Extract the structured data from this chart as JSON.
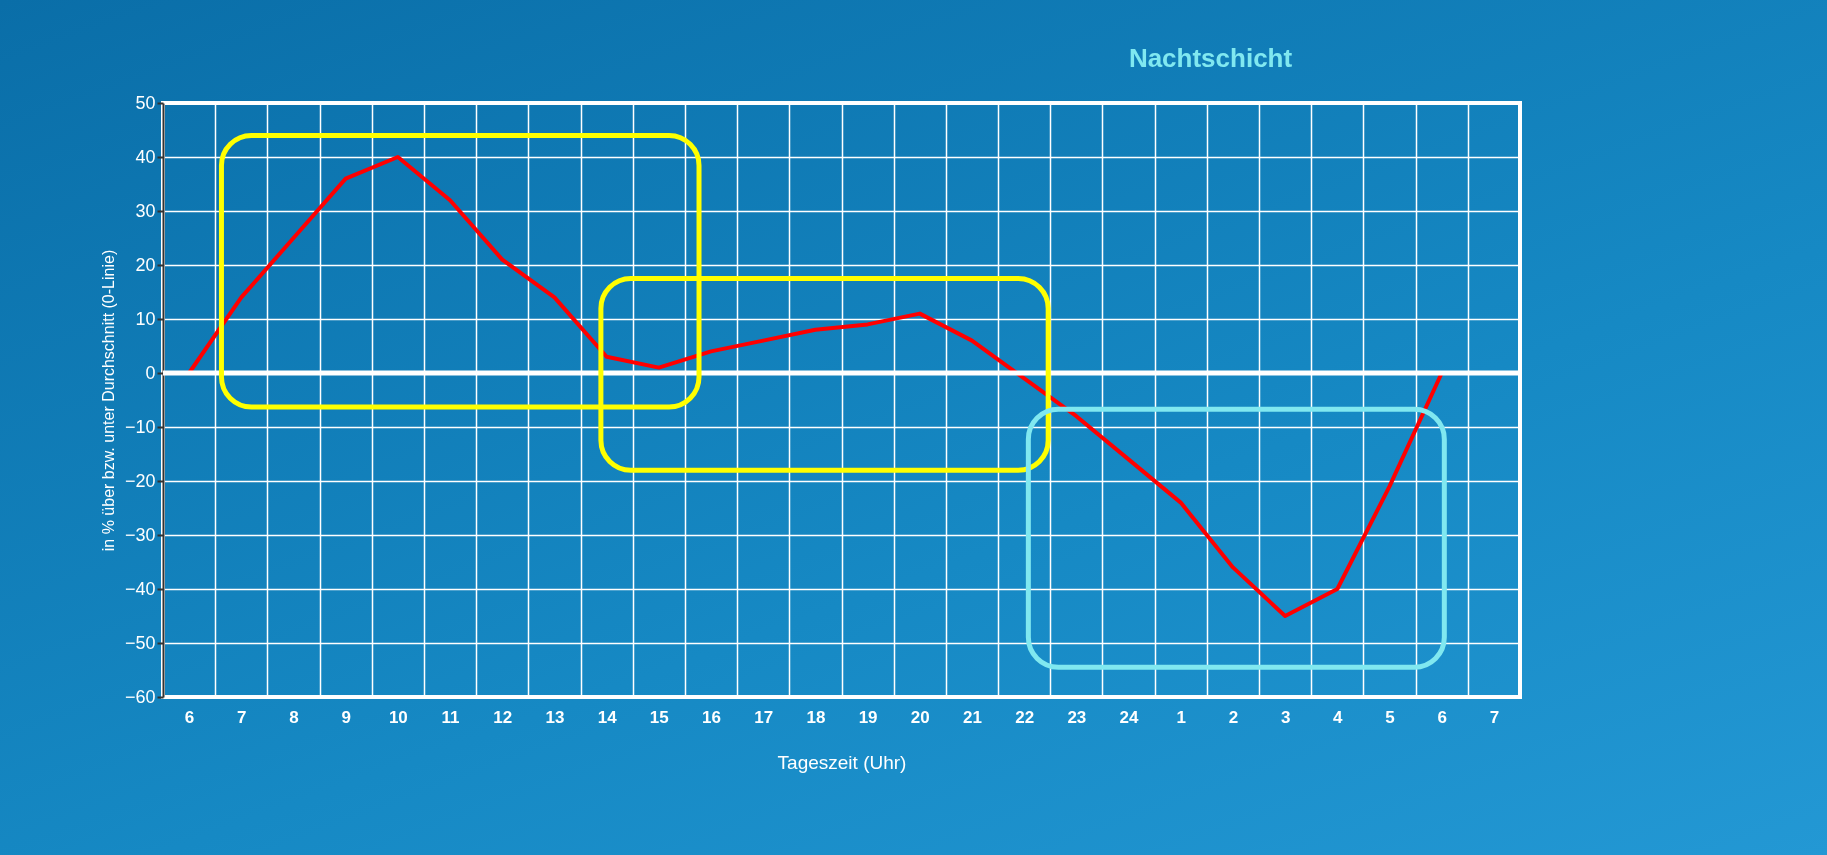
{
  "chart_data": {
    "type": "line",
    "title": "Nachtschicht",
    "xlabel": "Tageszeit (Uhr)",
    "ylabel": "in % über bzw. unter Durchschnitt (0-Linie)",
    "categories": [
      "6",
      "7",
      "8",
      "9",
      "10",
      "11",
      "12",
      "13",
      "14",
      "15",
      "16",
      "17",
      "18",
      "19",
      "20",
      "21",
      "22",
      "23",
      "24",
      "1",
      "2",
      "3",
      "4",
      "5",
      "6",
      "7"
    ],
    "series": [
      {
        "color": "#ff0000",
        "values": [
          0,
          14,
          25,
          36,
          40,
          32,
          21,
          14,
          3,
          1,
          4,
          6,
          8,
          9,
          11,
          6,
          -1,
          -8,
          -16,
          -24,
          -36,
          -45,
          -40,
          -21,
          0,
          null
        ]
      }
    ],
    "ylim": [
      -60,
      50
    ],
    "yticks": [
      -60,
      -50,
      -40,
      -30,
      -20,
      -10,
      0,
      10,
      20,
      30,
      40,
      50
    ],
    "grid": true,
    "legend": false,
    "marker": "none",
    "line_style": "solid",
    "ref_lines": [
      {
        "axis": "y",
        "value": 0,
        "color": "#ffffff"
      }
    ]
  }
}
